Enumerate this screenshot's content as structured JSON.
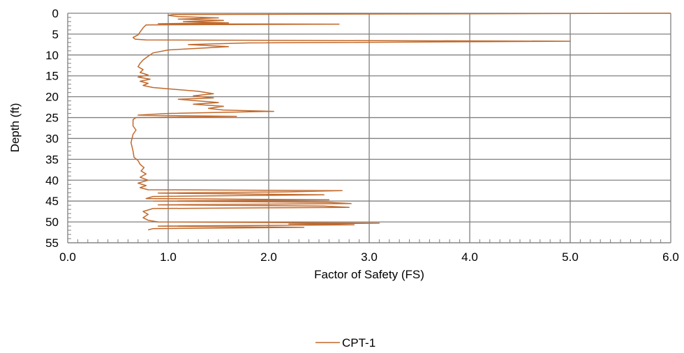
{
  "chart_data": {
    "type": "line",
    "title": "",
    "xlabel": "Factor of Safety (FS)",
    "ylabel": "Depth (ft)",
    "xlim": [
      0,
      6
    ],
    "ylim": [
      0,
      55
    ],
    "y_inverted": true,
    "x_ticks": [
      "0.0",
      "1.0",
      "2.0",
      "3.0",
      "4.0",
      "5.0",
      "6.0"
    ],
    "x_tick_values": [
      0,
      1,
      2,
      3,
      4,
      5,
      6
    ],
    "y_ticks": [
      "0",
      "5",
      "10",
      "15",
      "20",
      "25",
      "30",
      "35",
      "40",
      "45",
      "50",
      "55"
    ],
    "y_tick_values": [
      0,
      5,
      10,
      15,
      20,
      25,
      30,
      35,
      40,
      45,
      50,
      55
    ],
    "grid": true,
    "legend_position": "bottom",
    "line_color": "#C0692C",
    "series": [
      {
        "name": "CPT-1",
        "points": [
          [
            6.0,
            0.0
          ],
          [
            1.05,
            0.3
          ],
          [
            1.0,
            0.5
          ],
          [
            1.1,
            0.8
          ],
          [
            1.5,
            1.1
          ],
          [
            1.1,
            1.4
          ],
          [
            1.55,
            1.7
          ],
          [
            1.15,
            2.0
          ],
          [
            1.6,
            2.3
          ],
          [
            0.9,
            2.5
          ],
          [
            2.7,
            2.6
          ],
          [
            0.78,
            2.8
          ],
          [
            0.75,
            3.5
          ],
          [
            0.72,
            4.5
          ],
          [
            0.7,
            5.2
          ],
          [
            0.65,
            5.8
          ],
          [
            0.67,
            6.2
          ],
          [
            0.78,
            6.4
          ],
          [
            5.0,
            6.7
          ],
          [
            1.8,
            7.1
          ],
          [
            1.2,
            7.5
          ],
          [
            1.6,
            8.0
          ],
          [
            1.3,
            8.4
          ],
          [
            1.0,
            8.8
          ],
          [
            0.85,
            9.5
          ],
          [
            0.8,
            10.3
          ],
          [
            0.75,
            11.2
          ],
          [
            0.72,
            12.0
          ],
          [
            0.7,
            12.8
          ],
          [
            0.75,
            13.5
          ],
          [
            0.72,
            14.2
          ],
          [
            0.8,
            14.8
          ],
          [
            0.7,
            15.3
          ],
          [
            0.82,
            15.8
          ],
          [
            0.72,
            16.3
          ],
          [
            0.8,
            16.8
          ],
          [
            0.75,
            17.3
          ],
          [
            0.85,
            17.8
          ],
          [
            1.05,
            18.2
          ],
          [
            1.3,
            18.7
          ],
          [
            1.45,
            19.3
          ],
          [
            1.25,
            19.8
          ],
          [
            1.45,
            20.3
          ],
          [
            1.1,
            20.6
          ],
          [
            1.3,
            21.0
          ],
          [
            1.5,
            21.4
          ],
          [
            1.25,
            21.8
          ],
          [
            1.55,
            22.3
          ],
          [
            1.4,
            22.8
          ],
          [
            1.55,
            23.2
          ],
          [
            2.05,
            23.5
          ],
          [
            1.0,
            24.0
          ],
          [
            0.7,
            24.4
          ],
          [
            1.68,
            24.7
          ],
          [
            0.68,
            25.0
          ],
          [
            0.65,
            25.5
          ],
          [
            0.65,
            27.0
          ],
          [
            0.68,
            28.0
          ],
          [
            0.65,
            29.0
          ],
          [
            0.63,
            31.0
          ],
          [
            0.65,
            33.0
          ],
          [
            0.66,
            34.5
          ],
          [
            0.7,
            35.3
          ],
          [
            0.72,
            36.2
          ],
          [
            0.76,
            37.0
          ],
          [
            0.73,
            37.8
          ],
          [
            0.78,
            38.5
          ],
          [
            0.72,
            39.3
          ],
          [
            0.8,
            40.0
          ],
          [
            0.7,
            40.7
          ],
          [
            0.78,
            41.3
          ],
          [
            0.72,
            41.8
          ],
          [
            0.8,
            42.3
          ],
          [
            2.73,
            42.5
          ],
          [
            2.2,
            42.8
          ],
          [
            0.9,
            43.1
          ],
          [
            2.55,
            43.5
          ],
          [
            0.85,
            43.9
          ],
          [
            0.78,
            44.4
          ],
          [
            2.6,
            44.7
          ],
          [
            0.85,
            45.0
          ],
          [
            2.58,
            45.3
          ],
          [
            2.82,
            45.6
          ],
          [
            0.9,
            45.9
          ],
          [
            2.55,
            46.2
          ],
          [
            2.8,
            46.5
          ],
          [
            0.85,
            46.8
          ],
          [
            0.75,
            47.5
          ],
          [
            0.8,
            48.2
          ],
          [
            0.75,
            49.0
          ],
          [
            0.8,
            49.6
          ],
          [
            0.9,
            50.0
          ],
          [
            3.1,
            50.3
          ],
          [
            2.2,
            50.5
          ],
          [
            2.85,
            50.7
          ],
          [
            0.9,
            51.0
          ],
          [
            2.35,
            51.3
          ],
          [
            0.85,
            51.6
          ],
          [
            0.8,
            51.9
          ]
        ]
      }
    ]
  }
}
